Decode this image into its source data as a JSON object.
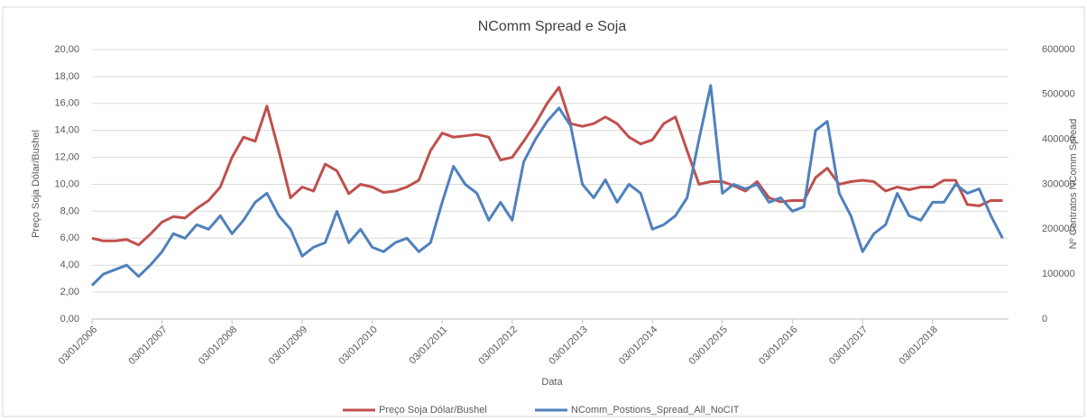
{
  "chart_data": {
    "type": "line",
    "title": "NComm Spread e Soja",
    "x_label": "Data",
    "y_label": "Preço Soja Dólar/Bushel",
    "y2_label": "Nº Contratos NComm Spread",
    "x": [
      "03/01/2006",
      "03/03/2006",
      "03/05/2006",
      "03/07/2006",
      "03/09/2006",
      "03/11/2006",
      "03/01/2007",
      "03/03/2007",
      "03/05/2007",
      "03/07/2007",
      "03/09/2007",
      "03/11/2007",
      "03/01/2008",
      "03/03/2008",
      "03/05/2008",
      "03/07/2008",
      "03/09/2008",
      "03/11/2008",
      "03/01/2009",
      "03/03/2009",
      "03/05/2009",
      "03/07/2009",
      "03/09/2009",
      "03/11/2009",
      "03/01/2010",
      "03/03/2010",
      "03/05/2010",
      "03/07/2010",
      "03/09/2010",
      "03/11/2010",
      "03/01/2011",
      "03/03/2011",
      "03/05/2011",
      "03/07/2011",
      "03/09/2011",
      "03/11/2011",
      "03/01/2012",
      "03/03/2012",
      "03/05/2012",
      "03/07/2012",
      "03/09/2012",
      "03/11/2012",
      "03/01/2013",
      "03/03/2013",
      "03/05/2013",
      "03/07/2013",
      "03/09/2013",
      "03/11/2013",
      "03/01/2014",
      "03/03/2014",
      "03/05/2014",
      "03/07/2014",
      "03/09/2014",
      "03/11/2014",
      "03/01/2015",
      "03/03/2015",
      "03/05/2015",
      "03/07/2015",
      "03/09/2015",
      "03/11/2015",
      "03/01/2016",
      "03/03/2016",
      "03/05/2016",
      "03/07/2016",
      "03/09/2016",
      "03/11/2016",
      "03/01/2017",
      "03/03/2017",
      "03/05/2017",
      "03/07/2017",
      "03/09/2017",
      "03/11/2017",
      "03/01/2018",
      "03/03/2018",
      "03/05/2018",
      "03/07/2018",
      "03/09/2018",
      "03/11/2018",
      "03/01/2019"
    ],
    "series": [
      {
        "name": "Preço Soja Dólar/Bushel",
        "color": "#c0504d",
        "values": [
          6.0,
          5.8,
          5.8,
          5.9,
          5.5,
          6.3,
          7.2,
          7.6,
          7.5,
          8.2,
          8.8,
          9.8,
          12.0,
          13.5,
          13.2,
          15.8,
          12.5,
          9.0,
          9.8,
          9.5,
          11.5,
          11.0,
          9.3,
          10.0,
          9.8,
          9.4,
          9.5,
          9.8,
          10.3,
          12.5,
          13.8,
          13.5,
          13.6,
          13.7,
          13.5,
          11.8,
          12.0,
          13.2,
          14.5,
          16.0,
          17.2,
          14.5,
          14.3,
          14.5,
          15.0,
          14.5,
          13.5,
          13.0,
          13.3,
          14.5,
          15.0,
          12.5,
          10.0,
          10.2,
          10.2,
          9.9,
          9.5,
          10.2,
          9.0,
          8.7,
          8.8,
          8.8,
          10.5,
          11.2,
          10.0,
          10.2,
          10.3,
          10.2,
          9.5,
          9.8,
          9.6,
          9.8,
          9.8,
          10.3,
          10.3,
          8.5,
          8.4,
          8.8,
          8.8
        ]
      },
      {
        "name": "NComm_Postions_Spread_All_NoCIT",
        "color": "#4f81bd",
        "axis": "y2",
        "values": [
          75000,
          100000,
          110000,
          120000,
          95000,
          120000,
          150000,
          190000,
          180000,
          210000,
          200000,
          230000,
          190000,
          220000,
          260000,
          280000,
          230000,
          200000,
          140000,
          160000,
          170000,
          240000,
          170000,
          200000,
          160000,
          150000,
          170000,
          180000,
          150000,
          170000,
          260000,
          340000,
          300000,
          280000,
          220000,
          260000,
          220000,
          350000,
          400000,
          440000,
          470000,
          430000,
          300000,
          270000,
          310000,
          260000,
          300000,
          280000,
          200000,
          210000,
          230000,
          270000,
          400000,
          520000,
          280000,
          300000,
          290000,
          300000,
          260000,
          270000,
          240000,
          250000,
          420000,
          440000,
          280000,
          230000,
          150000,
          190000,
          210000,
          280000,
          230000,
          220000,
          260000,
          260000,
          300000,
          280000,
          290000,
          230000,
          180000
        ]
      }
    ],
    "xlim": [
      "03/01/2006",
      "03/02/2019"
    ],
    "xticks": [
      "03/01/2006",
      "03/01/2007",
      "03/01/2008",
      "03/01/2009",
      "03/01/2010",
      "03/01/2011",
      "03/01/2012",
      "03/01/2013",
      "03/01/2014",
      "03/01/2015",
      "03/01/2016",
      "03/01/2017",
      "03/01/2018"
    ],
    "ylim": [
      0,
      20
    ],
    "yticks": [
      {
        "value": 0,
        "label": "0,00"
      },
      {
        "value": 2,
        "label": "2,00"
      },
      {
        "value": 4,
        "label": "4,00"
      },
      {
        "value": 6,
        "label": "6,00"
      },
      {
        "value": 8,
        "label": "8,00"
      },
      {
        "value": 10,
        "label": "10,00"
      },
      {
        "value": 12,
        "label": "12,00"
      },
      {
        "value": 14,
        "label": "14,00"
      },
      {
        "value": 16,
        "label": "16,00"
      },
      {
        "value": 18,
        "label": "18,00"
      },
      {
        "value": 20,
        "label": "20,00"
      }
    ],
    "y2lim": [
      0,
      600000
    ],
    "y2ticks": [
      0,
      100000,
      200000,
      300000,
      400000,
      500000,
      600000
    ],
    "grid": true,
    "legend": "bottom"
  }
}
